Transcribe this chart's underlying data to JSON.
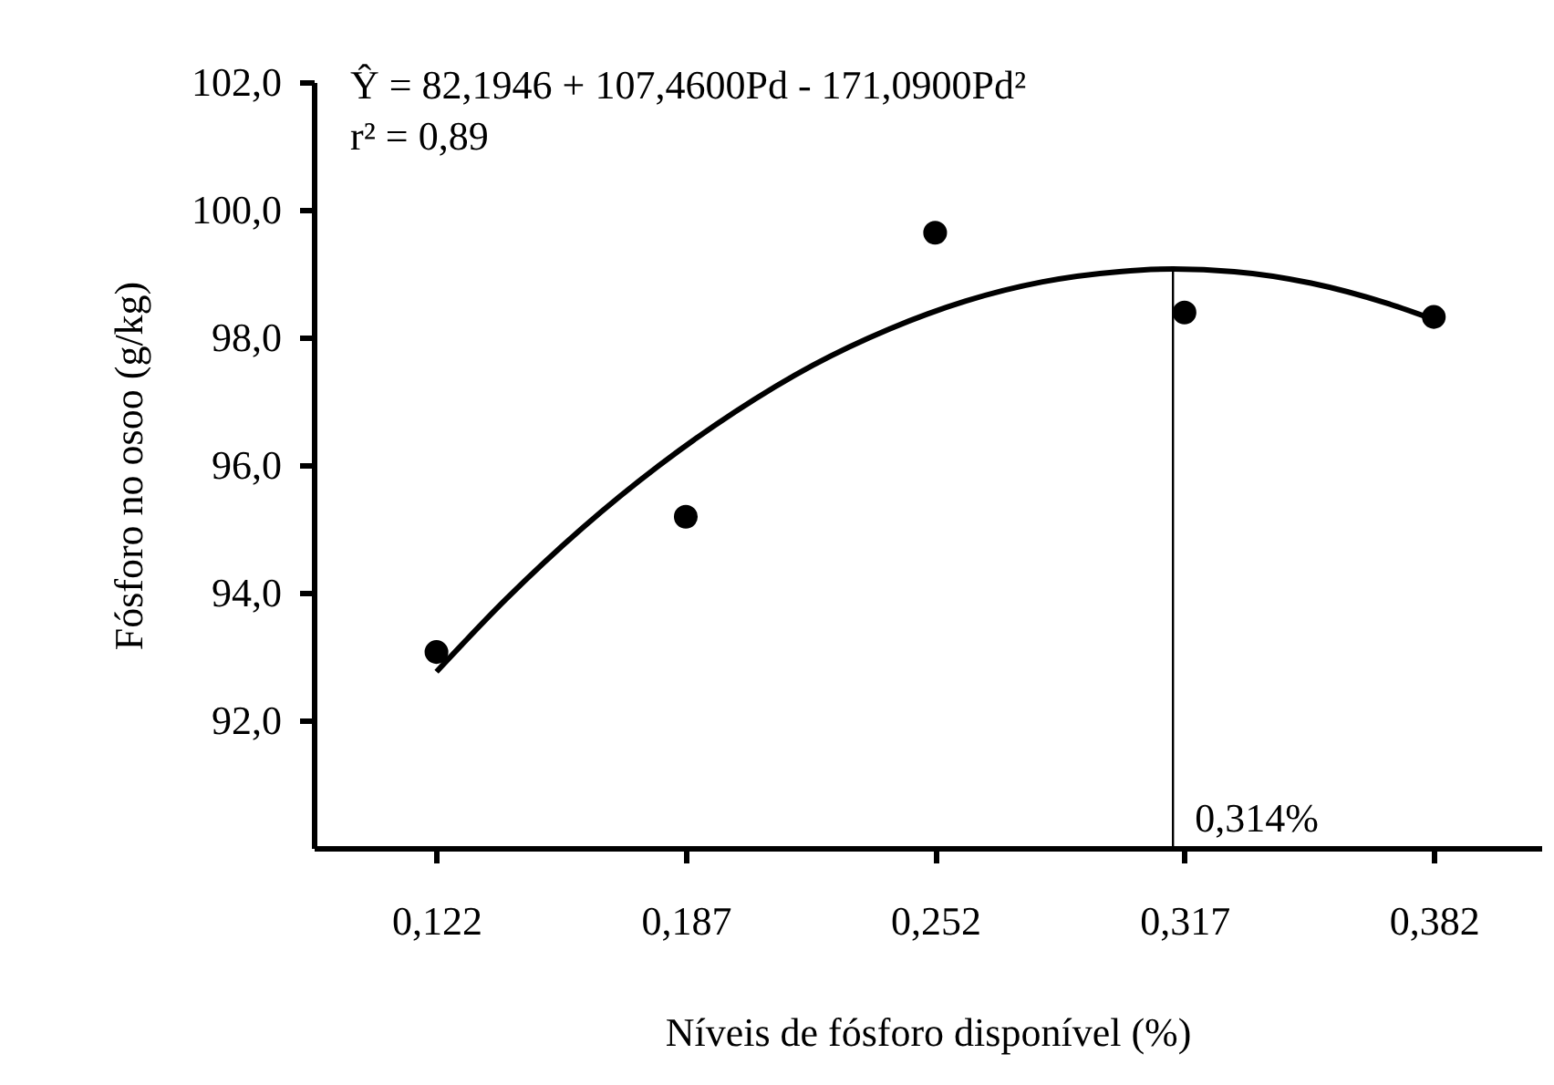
{
  "chart_data": {
    "type": "scatter",
    "xlabel": "Níveis de fósforo disponível (%)",
    "ylabel": "Fósforo no osoo (g/kg)",
    "annotations": [
      "Ŷ = 82,1946 + 107,4600Pd - 171,0900Pd²",
      "r² = 0,89"
    ],
    "x": [
      0.122,
      0.187,
      0.252,
      0.317,
      0.382
    ],
    "series": [
      {
        "color": "#000000",
        "marker": "circle",
        "values": [
          93.07,
          95.19,
          99.64,
          98.39,
          98.32
        ]
      },
      {
        "type": "line",
        "color": "#000000",
        "line_style": "solid",
        "x": [
          0.122,
          0.14,
          0.16,
          0.18,
          0.2,
          0.22,
          0.24,
          0.26,
          0.28,
          0.3,
          0.314,
          0.33,
          0.35,
          0.37,
          0.382
        ],
        "values": [
          92.76,
          93.89,
          95.01,
          95.99,
          96.84,
          97.56,
          98.13,
          98.57,
          98.87,
          99.03,
          99.07,
          99.03,
          98.85,
          98.53,
          98.28
        ]
      }
    ],
    "xlim": [
      0.09,
      0.41
    ],
    "xticks": [
      {
        "value": 0.122,
        "label": "0,122"
      },
      {
        "value": 0.187,
        "label": "0,187"
      },
      {
        "value": 0.252,
        "label": "0,252"
      },
      {
        "value": 0.317,
        "label": "0,317"
      },
      {
        "value": 0.382,
        "label": "0,382"
      }
    ],
    "ylim": [
      90,
      102
    ],
    "yticks": [
      {
        "value": 92,
        "label": "92,0"
      },
      {
        "value": 94,
        "label": "94,0"
      },
      {
        "value": 96,
        "label": "96,0"
      },
      {
        "value": 98,
        "label": "98,0"
      },
      {
        "value": 100,
        "label": "100,0"
      },
      {
        "value": 102,
        "label": "102,0"
      }
    ],
    "ref_lines": [
      {
        "axis": "x",
        "value": 0.314,
        "label": "0,314%",
        "color": "#000000"
      }
    ],
    "grid": false,
    "legend": false
  }
}
